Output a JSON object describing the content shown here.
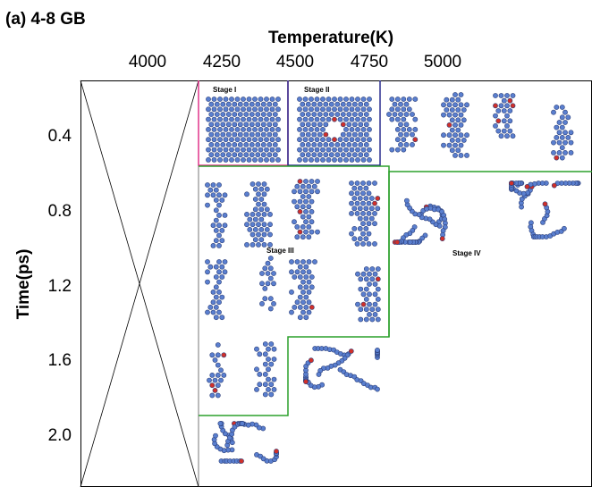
{
  "header": {
    "title": "(a) 4-8 GB"
  },
  "x_axis": {
    "title": "Temperature(K)",
    "ticks": [
      "4000",
      "4250",
      "4500",
      "4750",
      "5000"
    ]
  },
  "y_axis": {
    "title": "Time(ps)",
    "ticks": [
      "0.4",
      "0.8",
      "1.2",
      "1.6",
      "2.0"
    ]
  },
  "stages": [
    "Stage I",
    "Stage II",
    "Stage III",
    "Stage IV"
  ]
}
